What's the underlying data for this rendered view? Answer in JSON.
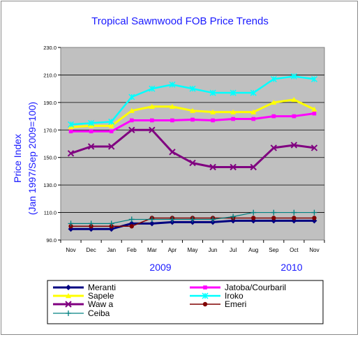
{
  "chart_data": {
    "type": "line",
    "title": "Tropical Sawnwood FOB Price Trends",
    "ylabel_line1": "Price Index",
    "ylabel_line2": "(Jan 1997/Sep 2009=100)",
    "ylim": [
      90.0,
      230.0
    ],
    "yticks": [
      "90.0",
      "110.0",
      "130.0",
      "150.0",
      "170.0",
      "190.0",
      "210.0",
      "230.0"
    ],
    "categories": [
      "Nov",
      "Dec",
      "Jan",
      "Feb",
      "Mar",
      "Apr",
      "May",
      "Jun",
      "Jul",
      "Aug",
      "Sep",
      "Oct",
      "Nov"
    ],
    "year_labels": [
      "2009",
      "2010"
    ],
    "grid": "horizontal",
    "legend_position": "bottom",
    "plot_background": "#c0c0c0",
    "series": [
      {
        "name": "Meranti",
        "color": "#000080",
        "marker": "diamond",
        "values": [
          98,
          98,
          98,
          102,
          102,
          103,
          103,
          103,
          104,
          104,
          104,
          104,
          104
        ]
      },
      {
        "name": "Jatoba/Courbaril",
        "color": "#ff00ff",
        "marker": "square",
        "values": [
          169,
          169,
          169,
          177,
          177,
          177,
          177.5,
          177,
          178,
          178,
          180,
          180,
          182
        ]
      },
      {
        "name": "Sapele",
        "color": "#ffff00",
        "marker": "triangle",
        "values": [
          172,
          173,
          173,
          184,
          187,
          187,
          184,
          183,
          183,
          183,
          190,
          192,
          185
        ]
      },
      {
        "name": "Iroko",
        "color": "#00ffff",
        "marker": "asterisk",
        "values": [
          174,
          175,
          176,
          194,
          200,
          203,
          200,
          197,
          197,
          197,
          207,
          209,
          207
        ]
      },
      {
        "name": "Waw a",
        "color": "#800080",
        "marker": "x",
        "values": [
          153,
          158,
          158,
          170,
          170,
          154,
          146,
          143,
          143,
          143,
          157,
          159,
          157
        ]
      },
      {
        "name": "Emeri",
        "color": "#800000",
        "marker": "circle",
        "values": [
          100,
          100,
          100,
          100,
          106,
          106,
          106,
          106,
          106,
          106,
          106,
          106,
          106
        ]
      },
      {
        "name": "Ceiba",
        "color": "#008080",
        "marker": "plus",
        "values": [
          102,
          102,
          102,
          105,
          105,
          105,
          105,
          105,
          107,
          110,
          110,
          110,
          110
        ]
      }
    ]
  }
}
